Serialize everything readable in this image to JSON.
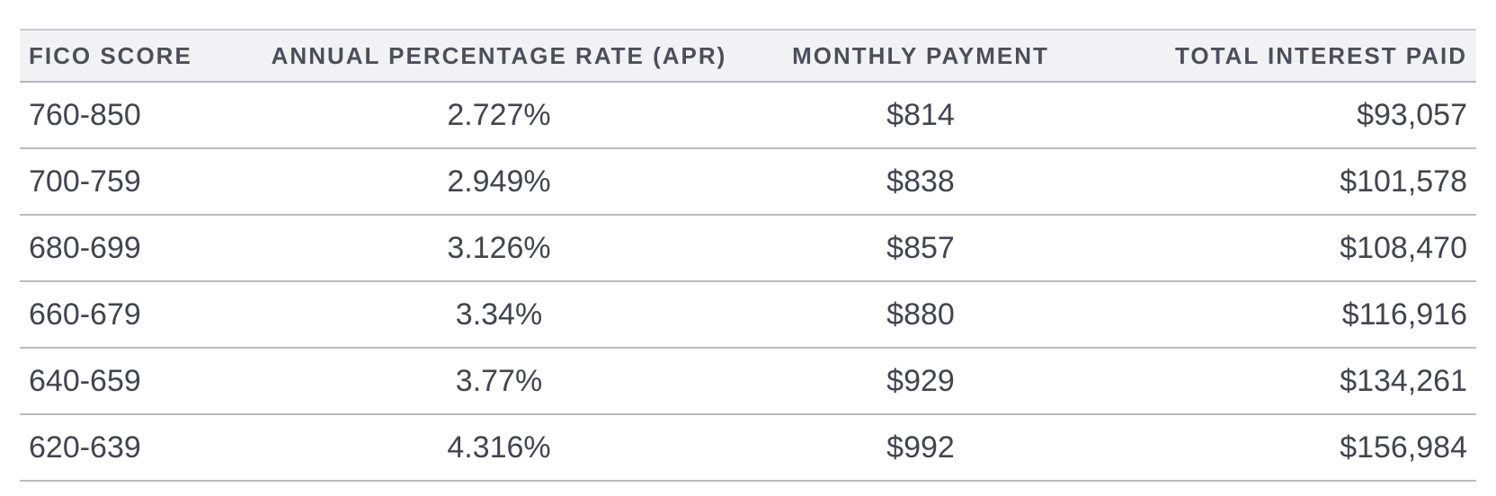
{
  "table": {
    "headers": [
      "FICO SCORE",
      "ANNUAL PERCENTAGE RATE (APR)",
      "MONTHLY PAYMENT",
      "TOTAL INTEREST PAID"
    ],
    "rows": [
      [
        "760-850",
        "2.727%",
        "$814",
        "$93,057"
      ],
      [
        "700-759",
        "2.949%",
        "$838",
        "$101,578"
      ],
      [
        "680-699",
        "3.126%",
        "$857",
        "$108,470"
      ],
      [
        "660-679",
        "3.34%",
        "$880",
        "$116,916"
      ],
      [
        "640-659",
        "3.77%",
        "$929",
        "$134,261"
      ],
      [
        "620-639",
        "4.316%",
        "$992",
        "$156,984"
      ]
    ]
  }
}
